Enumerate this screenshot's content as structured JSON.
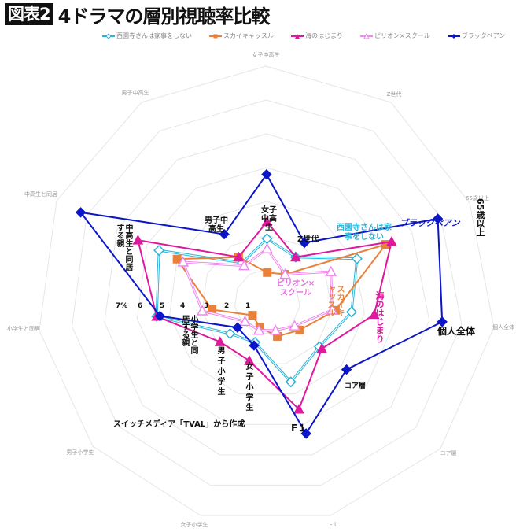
{
  "header": {
    "badge": "図表2",
    "title": "4ドラマの層別視聴率比較"
  },
  "legend": [
    {
      "label": "西園寺さんは家事をしない",
      "color": "#2bb5d8",
      "marker": "hollow-diamond"
    },
    {
      "label": "スカイキャッスル",
      "color": "#e8823a",
      "marker": "square"
    },
    {
      "label": "海のはじまり",
      "color": "#e0189e",
      "marker": "triangle"
    },
    {
      "label": "ピリオン×スクール",
      "color": "#ee88ee",
      "marker": "hollow-triangle"
    },
    {
      "label": "ブラックペアン",
      "color": "#0a16c8",
      "marker": "diamond"
    }
  ],
  "axis_outer_labels": [
    "女子中高生",
    "Z世代",
    "65歳以上",
    "個人全体",
    "コア層",
    "F１",
    "女子小学生",
    "男子小学生",
    "小学生と同居",
    "中高生と同居",
    "男子中高生"
  ],
  "annotations": {
    "scale": [
      "7%",
      "6",
      "5",
      "4",
      "3",
      "2",
      "1"
    ],
    "inner_labels": {
      "girls_jhs": "女子中高生",
      "gen_z": "Z世代",
      "boys_jhs": "男子中高生",
      "parents_jhs": "中高生と同居する親",
      "parents_elem": "小学生と同居する親",
      "boys_elem": "男子小学生",
      "girls_elem": "女子小学生",
      "f1": "F１",
      "core": "コア層",
      "all": "個人全体",
      "over65": "65歳以上"
    },
    "series_labels": {
      "saionji": "西園寺さんは家事をしない",
      "sky": "スカイキャッスル",
      "umi": "海のはじまり",
      "pillion": "ピリオン×スクール",
      "black": "ブラックペアン"
    },
    "source": "スイッチメディア「TVAL」から作成"
  },
  "chart_data": {
    "type": "radar",
    "title": "4ドラマの層別視聴率比較",
    "unit": "%",
    "range": [
      0,
      7
    ],
    "ticks": [
      1,
      2,
      3,
      4,
      5,
      6,
      7
    ],
    "categories": [
      "女子中高生",
      "Z世代",
      "65歳以上",
      "個人全体",
      "コア層",
      "F1",
      "女子小学生",
      "男子小学生",
      "小学生と同居する親",
      "中高生と同居する親",
      "男子中高生"
    ],
    "series": [
      {
        "name": "西園寺さんは家事をしない",
        "color": "#2bb5d8",
        "values": [
          1.9,
          1.6,
          3.1,
          2.6,
          2.1,
          2.6,
          1.3,
          1.5,
          3.4,
          3.6,
          1.4
        ]
      },
      {
        "name": "スカイキャッスル",
        "color": "#e8823a",
        "values": [
          0.9,
          1.0,
          4.1,
          2.1,
          1.3,
          1.1,
          0.8,
          0.6,
          1.7,
          3.0,
          1.6
        ]
      },
      {
        "name": "海のはじまり",
        "color": "#e0189e",
        "values": [
          2.4,
          1.6,
          4.3,
          3.3,
          2.2,
          3.5,
          1.9,
          1.9,
          3.4,
          4.3,
          1.6
        ]
      },
      {
        "name": "ピリオン×スクール",
        "color": "#ee88ee",
        "values": [
          1.6,
          1.0,
          2.2,
          2.0,
          1.1,
          0.9,
          0.9,
          0.9,
          2.0,
          2.8,
          1.3
        ]
      },
      {
        "name": "ブラックペアン",
        "color": "#0a16c8",
        "values": [
          3.8,
          2.1,
          5.9,
          5.4,
          3.2,
          4.3,
          1.4,
          1.2,
          3.3,
          6.2,
          2.4
        ]
      }
    ],
    "legend_position": "top",
    "source": "スイッチメディア「TVAL」から作成"
  }
}
